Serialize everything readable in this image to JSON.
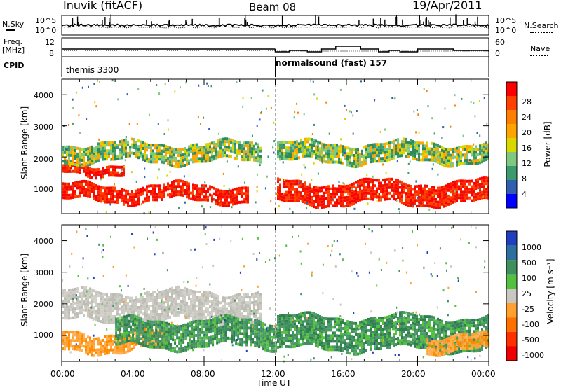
{
  "header": {
    "station": "Inuvik (fitACF)",
    "beam": "Beam 08",
    "date": "19/Apr/2011"
  },
  "nsky": {
    "label": "N.Sky",
    "ticks": [
      "10^5",
      "10^0"
    ],
    "right_label": "N.Search",
    "right_ticks": [
      "10^5",
      "10^0"
    ]
  },
  "freq": {
    "label_top": "Freq.",
    "label_units": "[MHz]",
    "ticks": [
      "12",
      "8"
    ],
    "right_label": "Nave",
    "right_ticks": [
      "60",
      "0"
    ]
  },
  "cpid": {
    "label": "CPID",
    "segments": [
      {
        "start_hour": 0,
        "end_hour": 12,
        "text": "themis 3300"
      },
      {
        "start_hour": 12,
        "end_hour": 24,
        "text": "normalsound (fast) 157"
      }
    ]
  },
  "power_colorbar": {
    "label": "Power [dB]",
    "ticks": [
      "28",
      "24",
      "20",
      "16",
      "12",
      "8",
      "4"
    ],
    "colors": [
      "#ff0000",
      "#ff4000",
      "#ff7f00",
      "#ffa500",
      "#d8d800",
      "#7fc87f",
      "#3c9a6e",
      "#2f5fae",
      "#0000ff"
    ]
  },
  "velocity_colorbar": {
    "label": "Velocity [m s⁻¹]",
    "ticks": [
      "1000",
      "500",
      "100",
      "25",
      "-25",
      "-100",
      "-500",
      "-1000"
    ],
    "colors": [
      "#1f3fbf",
      "#2f6f9f",
      "#3f8f5f",
      "#55c040",
      "#c8c8c0",
      "#ffa030",
      "#ff7000",
      "#ff3000",
      "#ee0000"
    ]
  },
  "x_axis": {
    "label": "Time UT",
    "ticks": [
      "00:00",
      "04:00",
      "08:00",
      "12:00",
      "16:00",
      "20:00",
      "00:00"
    ]
  },
  "chart_data": [
    {
      "type": "heatmap",
      "title": "",
      "xlabel": "Time UT",
      "ylabel": "Slant Range [km]",
      "xlim": [
        0,
        24
      ],
      "ylim": [
        180,
        4500
      ],
      "yticks": [
        "1000",
        "2000",
        "3000",
        "4000"
      ],
      "colorbar": "Power [dB]",
      "bands": [
        {
          "start_hour": 0.0,
          "end_hour": 10.5,
          "y1_km": 600,
          "y2_km": 1100,
          "value": "red"
        },
        {
          "start_hour": 0.0,
          "end_hour": 3.5,
          "y1_km": 1450,
          "y2_km": 1800,
          "value": "red"
        },
        {
          "start_hour": 0.0,
          "end_hour": 11.2,
          "y1_km": 1900,
          "y2_km": 2450,
          "value": "green"
        },
        {
          "start_hour": 12.1,
          "end_hour": 24.0,
          "y1_km": 1850,
          "y2_km": 2450,
          "value": "green"
        },
        {
          "start_hour": 12.1,
          "end_hour": 24.0,
          "y1_km": 550,
          "y2_km": 1200,
          "value": "red"
        }
      ]
    },
    {
      "type": "heatmap",
      "title": "",
      "xlabel": "Time UT",
      "ylabel": "Slant Range [km]",
      "xlim": [
        0,
        24
      ],
      "ylim": [
        180,
        4500
      ],
      "yticks": [
        "1000",
        "2000",
        "3000",
        "4000"
      ],
      "colorbar": "Velocity [m s⁻¹]",
      "bands": [
        {
          "start_hour": 0.0,
          "end_hour": 11.2,
          "y1_km": 1500,
          "y2_km": 2400,
          "value": "grey"
        },
        {
          "start_hour": 0.0,
          "end_hour": 6.0,
          "y1_km": 500,
          "y2_km": 1100,
          "value": "orange"
        },
        {
          "start_hour": 3.0,
          "end_hour": 12.0,
          "y1_km": 700,
          "y2_km": 1500,
          "value": "green"
        },
        {
          "start_hour": 12.1,
          "end_hour": 24.0,
          "y1_km": 600,
          "y2_km": 1600,
          "value": "green"
        },
        {
          "start_hour": 20.5,
          "end_hour": 24.0,
          "y1_km": 500,
          "y2_km": 1000,
          "value": "orange"
        }
      ]
    }
  ]
}
